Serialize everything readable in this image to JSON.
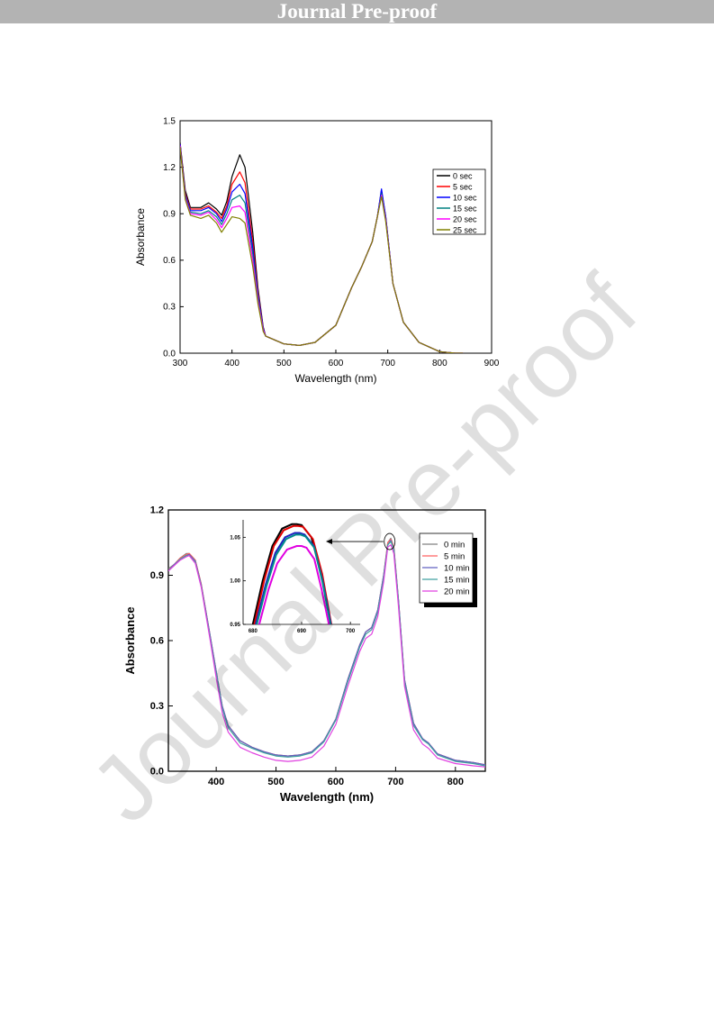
{
  "header": {
    "banner": "Journal Pre-proof"
  },
  "watermark": "Journal Pre-proof",
  "chart_data": [
    {
      "type": "line",
      "xlabel": "Wavelength (nm)",
      "ylabel": "Absorbance",
      "xlim": [
        300,
        900
      ],
      "ylim": [
        0,
        1.5
      ],
      "xticks": [
        300,
        400,
        500,
        600,
        700,
        800,
        900
      ],
      "yticks": [
        0.0,
        0.3,
        0.6,
        0.9,
        1.2,
        1.5
      ],
      "xtick_labels": [
        "300",
        "400",
        "500",
        "600",
        "700",
        "800",
        "900"
      ],
      "ytick_labels": [
        "0.0",
        "0.3",
        "0.6",
        "0.9",
        "1.2",
        "1.5"
      ],
      "legend_position": "right-middle",
      "grid": false,
      "series": [
        {
          "name": "0 sec",
          "color": "#000000",
          "x": [
            300,
            310,
            320,
            340,
            355,
            370,
            380,
            390,
            400,
            415,
            425,
            440,
            450,
            460,
            465,
            500,
            530,
            560,
            600,
            630,
            650,
            670,
            680,
            688,
            696,
            710,
            730,
            760,
            800,
            830,
            845
          ],
          "y": [
            1.36,
            1.05,
            0.94,
            0.94,
            0.97,
            0.93,
            0.89,
            0.98,
            1.14,
            1.28,
            1.2,
            0.78,
            0.42,
            0.17,
            0.11,
            0.06,
            0.05,
            0.07,
            0.18,
            0.42,
            0.56,
            0.72,
            0.88,
            1.05,
            0.88,
            0.45,
            0.2,
            0.07,
            0.01,
            0.0,
            0.0
          ]
        },
        {
          "name": "5 sec",
          "color": "#ff0000",
          "x": [
            300,
            310,
            320,
            340,
            355,
            370,
            380,
            390,
            400,
            415,
            425,
            440,
            450,
            460,
            465,
            500,
            530,
            560,
            600,
            630,
            650,
            670,
            680,
            688,
            696,
            710,
            730,
            760,
            800,
            830,
            845
          ],
          "y": [
            1.35,
            1.03,
            0.93,
            0.93,
            0.95,
            0.91,
            0.87,
            0.95,
            1.09,
            1.17,
            1.1,
            0.72,
            0.4,
            0.16,
            0.11,
            0.06,
            0.05,
            0.07,
            0.18,
            0.42,
            0.56,
            0.72,
            0.88,
            1.04,
            0.87,
            0.45,
            0.2,
            0.07,
            0.01,
            0.0,
            0.0
          ]
        },
        {
          "name": "10 sec",
          "color": "#0000ff",
          "x": [
            300,
            310,
            320,
            340,
            355,
            370,
            380,
            390,
            400,
            415,
            425,
            440,
            450,
            460,
            465,
            500,
            530,
            560,
            600,
            630,
            650,
            670,
            680,
            688,
            696,
            710,
            730,
            760,
            800,
            830,
            845
          ],
          "y": [
            1.35,
            1.02,
            0.92,
            0.92,
            0.94,
            0.9,
            0.85,
            0.93,
            1.04,
            1.09,
            1.03,
            0.68,
            0.38,
            0.16,
            0.11,
            0.06,
            0.05,
            0.07,
            0.18,
            0.42,
            0.56,
            0.72,
            0.88,
            1.06,
            0.88,
            0.45,
            0.2,
            0.07,
            0.01,
            0.0,
            0.0
          ]
        },
        {
          "name": "15 sec",
          "color": "#008080",
          "x": [
            300,
            310,
            320,
            340,
            355,
            370,
            380,
            390,
            400,
            415,
            425,
            440,
            450,
            460,
            465,
            500,
            530,
            560,
            600,
            630,
            650,
            670,
            680,
            688,
            696,
            710,
            730,
            760,
            800,
            830,
            845
          ],
          "y": [
            1.34,
            1.01,
            0.91,
            0.9,
            0.92,
            0.88,
            0.83,
            0.9,
            0.99,
            1.02,
            0.97,
            0.64,
            0.36,
            0.15,
            0.11,
            0.06,
            0.05,
            0.07,
            0.18,
            0.42,
            0.56,
            0.72,
            0.88,
            1.03,
            0.86,
            0.45,
            0.2,
            0.07,
            0.01,
            0.0,
            0.0
          ]
        },
        {
          "name": "20 sec",
          "color": "#ff00ff",
          "x": [
            300,
            310,
            320,
            340,
            355,
            370,
            380,
            390,
            400,
            415,
            425,
            440,
            450,
            460,
            465,
            500,
            530,
            560,
            600,
            630,
            650,
            670,
            680,
            688,
            696,
            710,
            730,
            760,
            800,
            830,
            845
          ],
          "y": [
            1.34,
            1.0,
            0.9,
            0.89,
            0.91,
            0.86,
            0.81,
            0.87,
            0.94,
            0.95,
            0.91,
            0.6,
            0.34,
            0.15,
            0.11,
            0.06,
            0.05,
            0.07,
            0.18,
            0.42,
            0.56,
            0.72,
            0.88,
            1.02,
            0.86,
            0.45,
            0.2,
            0.07,
            0.01,
            0.0,
            0.0
          ]
        },
        {
          "name": "25 sec",
          "color": "#808000",
          "x": [
            300,
            310,
            320,
            340,
            355,
            370,
            380,
            390,
            400,
            415,
            425,
            440,
            450,
            460,
            465,
            500,
            530,
            560,
            600,
            630,
            650,
            670,
            680,
            688,
            696,
            710,
            730,
            760,
            800,
            830,
            845
          ],
          "y": [
            1.33,
            0.99,
            0.89,
            0.87,
            0.89,
            0.84,
            0.78,
            0.83,
            0.88,
            0.87,
            0.84,
            0.56,
            0.32,
            0.14,
            0.11,
            0.06,
            0.05,
            0.07,
            0.18,
            0.42,
            0.56,
            0.72,
            0.88,
            1.01,
            0.85,
            0.45,
            0.2,
            0.07,
            0.01,
            0.0,
            0.0
          ]
        }
      ]
    },
    {
      "type": "line",
      "xlabel": "Wavelength (nm)",
      "ylabel": "Absorbance",
      "xlim": [
        320,
        850
      ],
      "ylim": [
        0,
        1.2
      ],
      "xticks": [
        400,
        500,
        600,
        700,
        800
      ],
      "yticks": [
        0.0,
        0.3,
        0.6,
        0.9,
        1.2
      ],
      "xtick_labels": [
        "400",
        "500",
        "600",
        "700",
        "800"
      ],
      "ytick_labels": [
        "0.0",
        "0.3",
        "0.6",
        "0.9",
        "1.2"
      ],
      "legend_position": "top-right",
      "grid": false,
      "series": [
        {
          "name": "0 min",
          "color": "#808080",
          "x": [
            320,
            330,
            340,
            350,
            355,
            365,
            375,
            390,
            400,
            410,
            420,
            440,
            460,
            480,
            500,
            520,
            540,
            560,
            580,
            600,
            620,
            640,
            650,
            660,
            670,
            680,
            687,
            692,
            697,
            705,
            715,
            730,
            745,
            755,
            770,
            800,
            830,
            850
          ],
          "y": [
            0.93,
            0.95,
            0.98,
            1.0,
            1.0,
            0.97,
            0.86,
            0.62,
            0.46,
            0.3,
            0.21,
            0.14,
            0.11,
            0.09,
            0.075,
            0.07,
            0.075,
            0.09,
            0.14,
            0.24,
            0.42,
            0.58,
            0.64,
            0.66,
            0.74,
            0.9,
            1.05,
            1.07,
            1.03,
            0.78,
            0.42,
            0.22,
            0.15,
            0.13,
            0.08,
            0.05,
            0.04,
            0.03
          ]
        },
        {
          "name": "5 min",
          "color": "#ff6060",
          "x": [
            320,
            330,
            340,
            350,
            355,
            365,
            375,
            390,
            400,
            410,
            420,
            440,
            460,
            480,
            500,
            520,
            540,
            560,
            580,
            600,
            620,
            640,
            650,
            660,
            670,
            680,
            687,
            692,
            697,
            705,
            715,
            730,
            745,
            755,
            770,
            800,
            830,
            850
          ],
          "y": [
            0.92,
            0.95,
            0.98,
            0.995,
            1.0,
            0.97,
            0.86,
            0.62,
            0.46,
            0.3,
            0.21,
            0.14,
            0.11,
            0.09,
            0.075,
            0.07,
            0.075,
            0.09,
            0.14,
            0.24,
            0.42,
            0.58,
            0.64,
            0.66,
            0.74,
            0.9,
            1.05,
            1.065,
            1.03,
            0.78,
            0.42,
            0.22,
            0.15,
            0.13,
            0.08,
            0.05,
            0.04,
            0.03
          ]
        },
        {
          "name": "10 min",
          "color": "#6060c0",
          "x": [
            320,
            330,
            340,
            350,
            355,
            365,
            375,
            390,
            400,
            410,
            420,
            440,
            460,
            480,
            500,
            520,
            540,
            560,
            580,
            600,
            620,
            640,
            650,
            660,
            670,
            680,
            687,
            692,
            697,
            705,
            715,
            730,
            745,
            755,
            770,
            800,
            830,
            850
          ],
          "y": [
            0.92,
            0.95,
            0.975,
            0.99,
            0.995,
            0.965,
            0.855,
            0.62,
            0.46,
            0.3,
            0.21,
            0.14,
            0.11,
            0.09,
            0.075,
            0.07,
            0.075,
            0.09,
            0.14,
            0.24,
            0.42,
            0.58,
            0.64,
            0.66,
            0.74,
            0.9,
            1.04,
            1.06,
            1.02,
            0.78,
            0.42,
            0.22,
            0.15,
            0.13,
            0.08,
            0.05,
            0.04,
            0.03
          ]
        },
        {
          "name": "15 min",
          "color": "#40a0a0",
          "x": [
            320,
            330,
            340,
            350,
            355,
            365,
            375,
            390,
            400,
            410,
            420,
            440,
            460,
            480,
            500,
            520,
            540,
            560,
            580,
            600,
            620,
            640,
            650,
            660,
            670,
            680,
            687,
            692,
            697,
            705,
            715,
            730,
            745,
            755,
            770,
            800,
            830,
            850
          ],
          "y": [
            0.92,
            0.945,
            0.975,
            0.99,
            0.99,
            0.96,
            0.85,
            0.61,
            0.45,
            0.29,
            0.2,
            0.13,
            0.105,
            0.085,
            0.07,
            0.065,
            0.07,
            0.085,
            0.135,
            0.235,
            0.41,
            0.57,
            0.63,
            0.65,
            0.73,
            0.89,
            1.04,
            1.055,
            1.02,
            0.77,
            0.41,
            0.21,
            0.145,
            0.125,
            0.075,
            0.045,
            0.035,
            0.025
          ]
        },
        {
          "name": "20 min",
          "color": "#e040e0",
          "x": [
            320,
            330,
            340,
            350,
            355,
            365,
            375,
            390,
            400,
            410,
            420,
            440,
            460,
            480,
            500,
            520,
            540,
            560,
            580,
            600,
            620,
            640,
            650,
            660,
            670,
            680,
            687,
            692,
            697,
            705,
            715,
            730,
            745,
            755,
            770,
            800,
            830,
            850
          ],
          "y": [
            0.92,
            0.945,
            0.97,
            0.985,
            0.99,
            0.955,
            0.845,
            0.6,
            0.43,
            0.27,
            0.18,
            0.11,
            0.085,
            0.065,
            0.05,
            0.045,
            0.05,
            0.065,
            0.115,
            0.215,
            0.39,
            0.55,
            0.61,
            0.63,
            0.71,
            0.87,
            1.03,
            1.04,
            1.0,
            0.75,
            0.39,
            0.19,
            0.125,
            0.105,
            0.06,
            0.035,
            0.025,
            0.02
          ]
        }
      ]
    },
    {
      "type": "line",
      "xlim": [
        678,
        702
      ],
      "ylim": [
        0.95,
        1.07
      ],
      "xticks": [
        680,
        690,
        700
      ],
      "yticks": [
        0.95,
        1.0,
        1.05
      ],
      "xtick_labels": [
        "680",
        "690",
        "700"
      ],
      "ytick_labels": [
        "0.95",
        "1.00",
        "1.05"
      ],
      "grid": false,
      "series": [
        {
          "name": "0 min",
          "color": "#000000",
          "x": [
            680,
            682,
            684,
            686,
            688,
            689,
            690,
            692,
            694,
            696
          ],
          "y": [
            0.95,
            1.0,
            1.04,
            1.06,
            1.065,
            1.065,
            1.064,
            1.05,
            1.01,
            0.95
          ]
        },
        {
          "name": "5 min",
          "color": "#e00000",
          "x": [
            680.3,
            682.3,
            684.3,
            686.3,
            688.3,
            689.3,
            690.3,
            692.3,
            694.2,
            696.1
          ],
          "y": [
            0.95,
            1.0,
            1.04,
            1.058,
            1.063,
            1.063,
            1.062,
            1.048,
            1.008,
            0.95
          ]
        },
        {
          "name": "10 min",
          "color": "#2020c0",
          "x": [
            680.6,
            682.6,
            684.6,
            686.6,
            688.6,
            689.6,
            690.6,
            692.5,
            694.3,
            696.0
          ],
          "y": [
            0.95,
            0.995,
            1.032,
            1.05,
            1.055,
            1.055,
            1.053,
            1.04,
            1.0,
            0.95
          ]
        },
        {
          "name": "15 min",
          "color": "#008b8b",
          "x": [
            680.8,
            682.8,
            684.8,
            686.8,
            688.8,
            689.8,
            690.8,
            692.6,
            694.3,
            695.9
          ],
          "y": [
            0.95,
            0.994,
            1.03,
            1.048,
            1.053,
            1.053,
            1.051,
            1.038,
            0.998,
            0.95
          ]
        },
        {
          "name": "20 min",
          "color": "#e000e0",
          "x": [
            681.3,
            683.2,
            685.0,
            687.0,
            689.0,
            690.0,
            691.0,
            692.6,
            694.1,
            695.6
          ],
          "y": [
            0.95,
            0.99,
            1.02,
            1.036,
            1.04,
            1.04,
            1.038,
            1.025,
            0.99,
            0.95
          ]
        }
      ]
    }
  ]
}
